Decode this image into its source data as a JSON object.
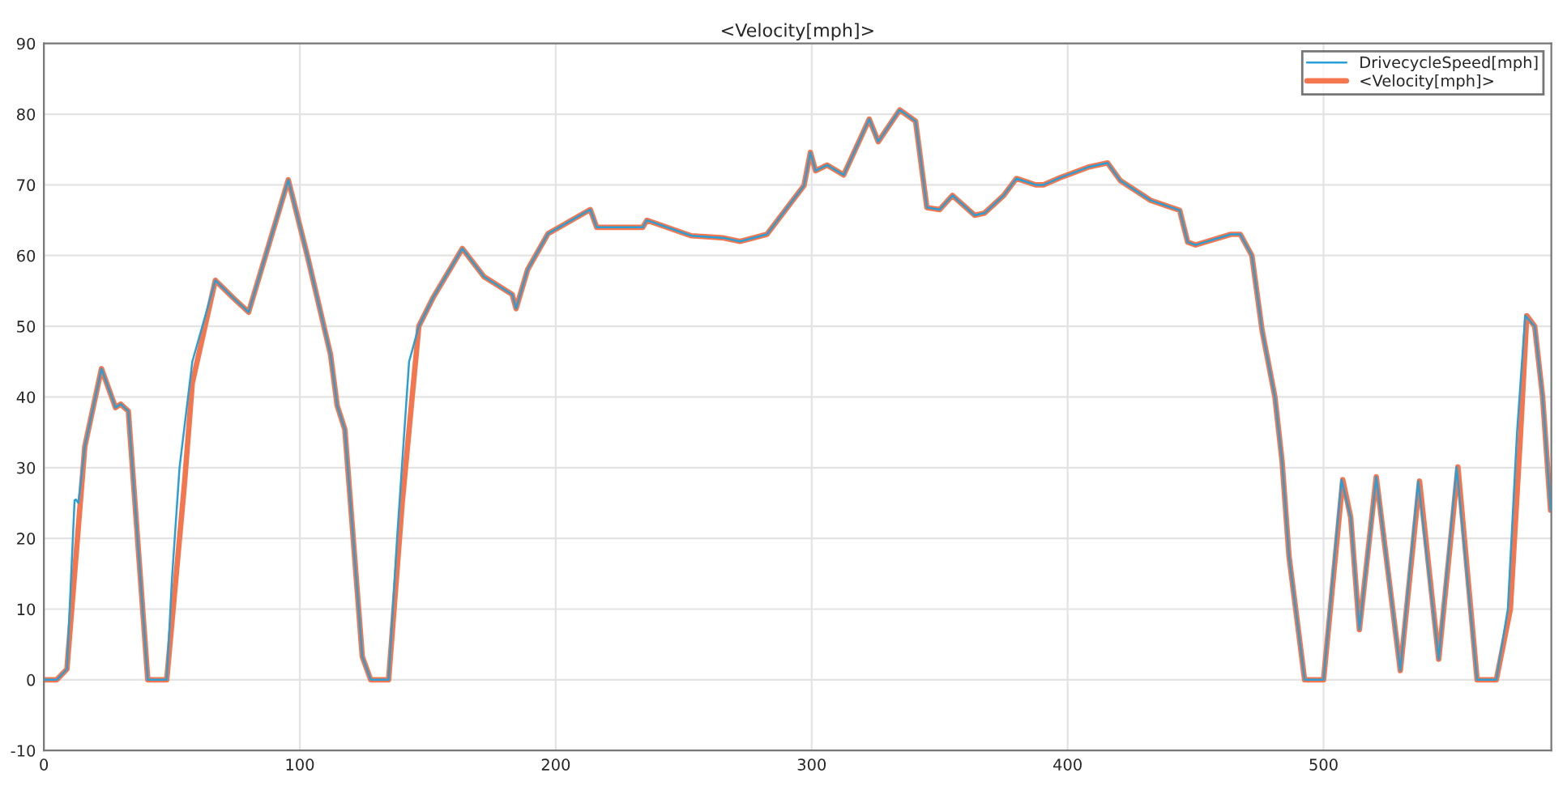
{
  "chart_data": {
    "type": "line",
    "title": "<Velocity[mph]>",
    "series": [
      {
        "name": "DrivecycleSpeed[mph]",
        "color": "#2a9fd6",
        "x": [
          0,
          5,
          9,
          12,
          12.5,
          13.5,
          16,
          22.5,
          28,
          30,
          33,
          40.6,
          48,
          50,
          53,
          58,
          67,
          74,
          80,
          95.5,
          103,
          112,
          114.6,
          117.6,
          124.4,
          127.7,
          134.7,
          138,
          142.7,
          146.5,
          152,
          163.5,
          172,
          183,
          184.5,
          189,
          197,
          213.5,
          216,
          234,
          235.6,
          253,
          265.6,
          272,
          282.5,
          297,
          299.5,
          301.5,
          306,
          312.5,
          322.5,
          326,
          334.4,
          340.6,
          345,
          350,
          355,
          363.7,
          367.5,
          375,
          380,
          387.5,
          390.6,
          397,
          408,
          415.6,
          420.6,
          432.5,
          443.8,
          446.9,
          450,
          463.8,
          467.5,
          472,
          476,
          481,
          483.8,
          486.5,
          492.6,
          500,
          507,
          510.6,
          514,
          520.6,
          530,
          537,
          545,
          552,
          560,
          567.5,
          572,
          575.6,
          578.8,
          582.5,
          585.6,
          588.7
        ],
        "values": [
          0,
          0,
          1.5,
          25.4,
          25.5,
          25,
          33,
          44,
          38.5,
          39,
          38,
          0,
          0,
          14,
          30,
          45,
          56.5,
          54,
          52,
          70.7,
          59.9,
          46,
          38.8,
          35.4,
          3.3,
          0,
          0,
          20,
          45,
          50,
          54,
          61,
          57,
          54.5,
          52.5,
          58,
          63.1,
          66.5,
          64,
          64,
          65,
          62.8,
          62.5,
          62,
          63,
          69.9,
          74.6,
          72,
          72.8,
          71.4,
          79.3,
          76.1,
          80.6,
          79,
          66.8,
          66.5,
          68.5,
          65.7,
          66,
          68.5,
          70.9,
          70,
          70,
          71,
          72.5,
          73.1,
          70.6,
          67.8,
          66.4,
          61.9,
          61.5,
          63,
          63,
          60,
          49.4,
          40,
          30.9,
          17.5,
          0,
          0,
          28.3,
          23,
          7.1,
          28.7,
          1.3,
          28.1,
          2.9,
          30.1,
          0,
          0,
          10,
          35,
          51.5,
          50,
          40,
          24
        ]
      },
      {
        "name": "<Velocity[mph]>",
        "color": "#f4764f",
        "x": [
          0,
          5,
          9,
          16,
          22.5,
          28,
          30,
          33,
          40.6,
          48,
          51,
          55,
          58,
          67,
          74,
          80,
          95.5,
          103,
          112,
          114.6,
          117.6,
          124.4,
          127.7,
          134.7,
          140,
          146.5,
          152,
          163.5,
          172,
          183,
          184.5,
          189,
          197,
          213.5,
          216,
          234,
          235.6,
          253,
          265.6,
          272,
          282.5,
          297,
          299.5,
          301.5,
          306,
          312.5,
          322.5,
          326,
          334.4,
          340.6,
          345,
          350,
          355,
          363.7,
          367.5,
          375,
          380,
          387.5,
          390.6,
          397,
          408,
          415.6,
          420.6,
          432.5,
          443.8,
          446.9,
          450,
          463.8,
          467.5,
          472,
          476,
          481,
          483.8,
          486.5,
          492.6,
          500,
          507.5,
          510.6,
          514,
          520.6,
          530,
          537.5,
          545,
          552.5,
          560,
          567.5,
          573,
          577,
          579.4,
          582.5,
          585.6,
          588.7
        ],
        "values": [
          0,
          0,
          1.5,
          33,
          44,
          38.5,
          39,
          38,
          0,
          0,
          12,
          28,
          42,
          56.5,
          54,
          52,
          70.7,
          59.9,
          46,
          38.8,
          35.4,
          3.3,
          0,
          0,
          25,
          50,
          54,
          61,
          57,
          54.5,
          52.5,
          58,
          63.1,
          66.5,
          64,
          64,
          65,
          62.8,
          62.5,
          62,
          63,
          69.9,
          74.6,
          72,
          72.8,
          71.4,
          79.3,
          76.1,
          80.6,
          79,
          66.8,
          66.5,
          68.5,
          65.7,
          66,
          68.5,
          70.9,
          70,
          70,
          71,
          72.5,
          73.1,
          70.6,
          67.8,
          66.4,
          61.9,
          61.5,
          63,
          63,
          60,
          49.4,
          40,
          30.9,
          17.5,
          0,
          0,
          28.3,
          23,
          7.1,
          28.7,
          1.3,
          28.1,
          2.9,
          30.1,
          0,
          0,
          10,
          35,
          51.5,
          50,
          40,
          24
        ]
      }
    ],
    "xlim": [
      0,
      589
    ],
    "ylim": [
      -10,
      90
    ],
    "xticks": [
      0,
      100,
      200,
      300,
      400,
      500
    ],
    "yticks": [
      -10,
      0,
      10,
      20,
      30,
      40,
      50,
      60,
      70,
      80,
      90
    ],
    "grid": true,
    "legend": "top right",
    "line_style": "solid",
    "marker": "none"
  }
}
